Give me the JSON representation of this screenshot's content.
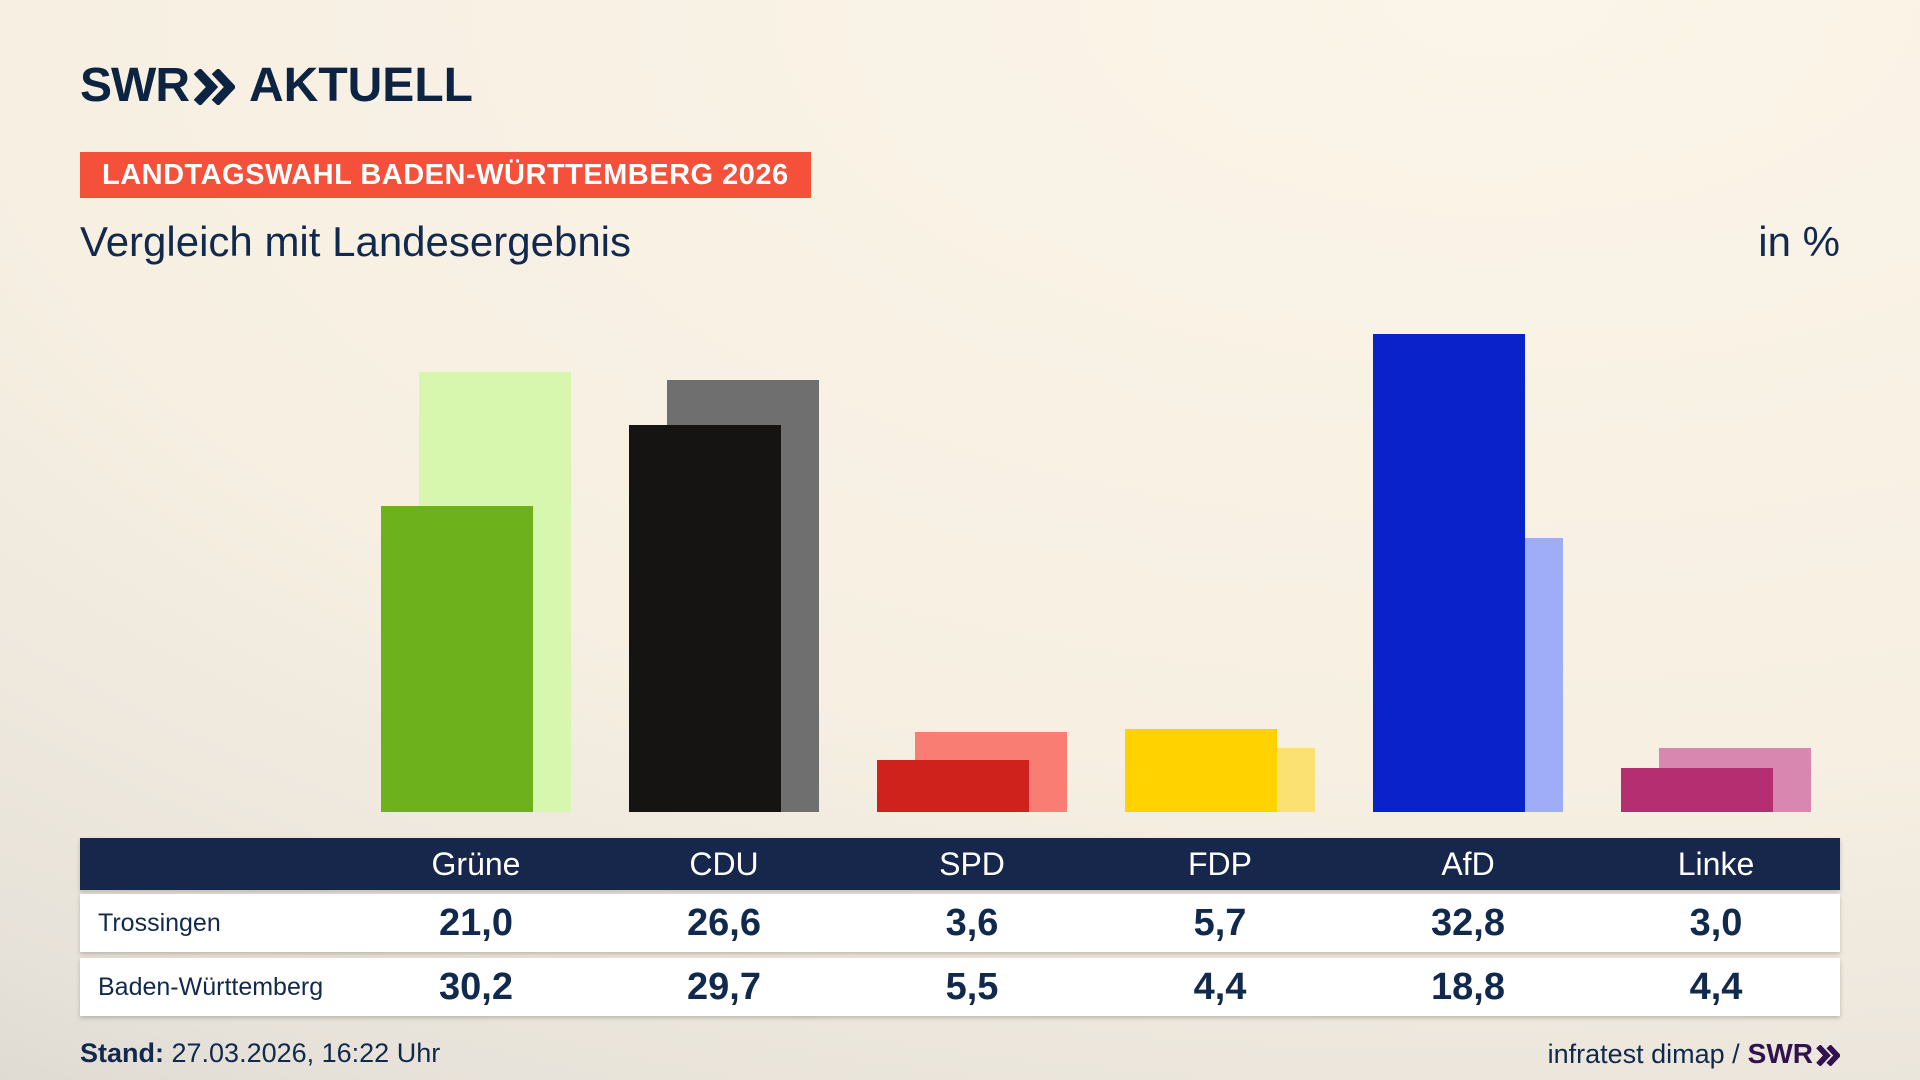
{
  "header": {
    "logo_text": "SWR",
    "logo_suffix": "AKTUELL",
    "badge": "LANDTAGSWAHL BADEN-WÜRTTEMBERG 2026",
    "title": "Vergleich mit Landesergebnis",
    "unit_label": "in %"
  },
  "chart_data": {
    "type": "bar",
    "categories": [
      "Grüne",
      "CDU",
      "SPD",
      "FDP",
      "AfD",
      "Linke"
    ],
    "series": [
      {
        "name": "Trossingen",
        "values": [
          21.0,
          26.6,
          3.6,
          5.7,
          32.8,
          3.0
        ],
        "colors": [
          "#6db11d",
          "#151413",
          "#d0221c",
          "#ffd200",
          "#0a22c9",
          "#b62e72"
        ]
      },
      {
        "name": "Baden-Württemberg",
        "values": [
          30.2,
          29.7,
          5.5,
          4.4,
          18.8,
          4.4
        ],
        "colors": [
          "#d7f6ae",
          "#6f6f6f",
          "#f97d72",
          "#fae172",
          "#9fadf9",
          "#d887b1"
        ]
      }
    ],
    "title": "Vergleich mit Landesergebnis",
    "xlabel": "",
    "ylabel": "in %",
    "ylim": [
      0,
      34.3
    ],
    "grid": false,
    "legend_position": "table-below"
  },
  "table": {
    "columns": [
      "Grüne",
      "CDU",
      "SPD",
      "FDP",
      "AfD",
      "Linke"
    ],
    "rows": [
      {
        "label": "Trossingen",
        "values": [
          "21,0",
          "26,6",
          "3,6",
          "5,7",
          "32,8",
          "3,0"
        ]
      },
      {
        "label": "Baden-Württemberg",
        "values": [
          "30,2",
          "29,7",
          "5,5",
          "4,4",
          "18,8",
          "4,4"
        ]
      }
    ]
  },
  "footer": {
    "stand_label": "Stand:",
    "stand_value": " 27.03.2026, 16:22 Uhr",
    "source_text": "infratest dimap /",
    "source_logo_text": "SWR"
  },
  "colors": {
    "navy_text": "#12294e",
    "table_header_bg": "#16274b",
    "badge_bg": "#f4503a",
    "badge_text": "#ffffff",
    "footer_logo": "#31114f",
    "row_bg": "#ffffff"
  }
}
